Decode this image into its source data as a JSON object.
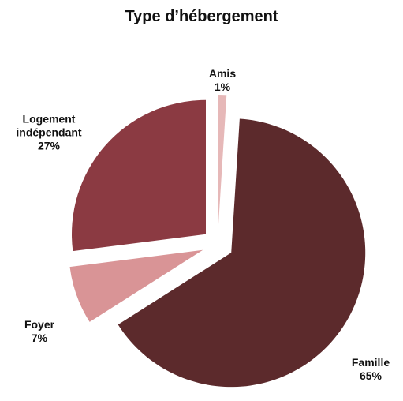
{
  "chart_data": {
    "type": "pie",
    "title": "Type d’hébergement",
    "categories": [
      "Amis",
      "Famille",
      "Foyer",
      "Logement indépendant"
    ],
    "values": [
      1,
      65,
      7,
      27
    ],
    "value_labels": [
      "1%",
      "65%",
      "7%",
      "27%"
    ],
    "colors": [
      "#e6b8b8",
      "#5c2a2c",
      "#d99496",
      "#8b3a42"
    ],
    "exploded": true
  }
}
